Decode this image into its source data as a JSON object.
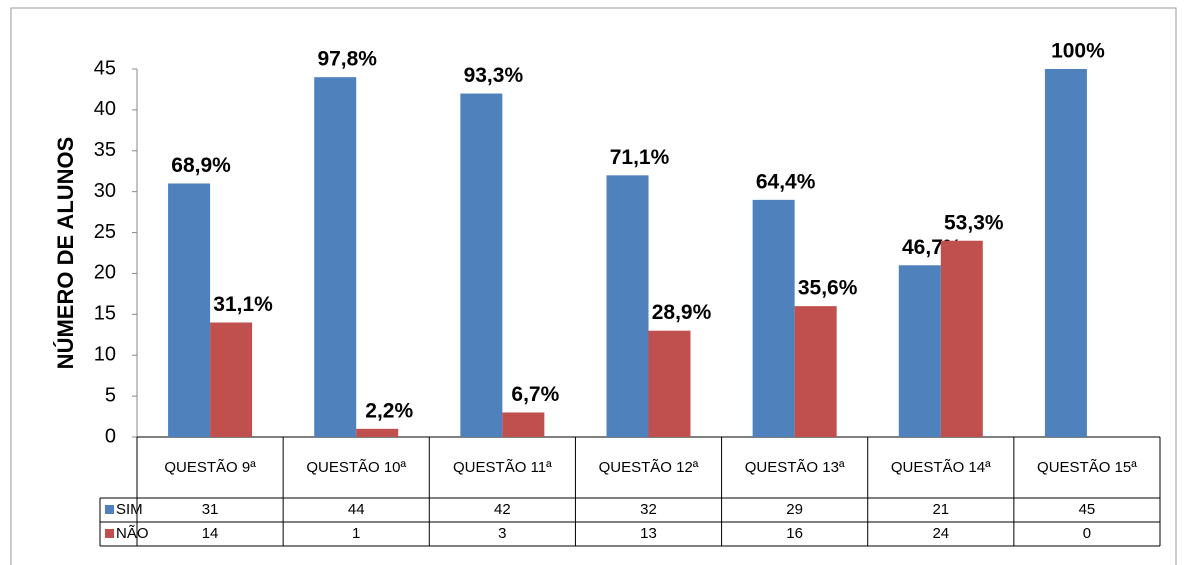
{
  "chart_data": {
    "type": "bar",
    "y_label": "NÚMERO DE ALUNOS",
    "categories": [
      "QUESTÃO 9ª",
      "QUESTÃO 10ª",
      "QUESTÃO 11ª",
      "QUESTÃO 12ª",
      "QUESTÃO 13ª",
      "QUESTÃO 14ª",
      "QUESTÃO 15ª"
    ],
    "series": [
      {
        "name": "SIM",
        "color": "#4f81bd",
        "values": [
          31,
          44,
          42,
          32,
          29,
          21,
          45
        ],
        "value_labels": [
          "68,9%",
          "97,8%",
          "93,3%",
          "71,1%",
          "64,4%",
          "46,7%",
          "100%"
        ]
      },
      {
        "name": "NÃO",
        "color": "#c0504d",
        "values": [
          14,
          1,
          3,
          13,
          16,
          24,
          0
        ],
        "value_labels": [
          "31,1%",
          "2,2%",
          "6,7%",
          "28,9%",
          "35,6%",
          "53,3%",
          null
        ]
      }
    ],
    "ylim": [
      0,
      45
    ],
    "yticks": [
      0,
      5,
      10,
      15,
      20,
      25,
      30,
      35,
      40,
      45
    ]
  }
}
